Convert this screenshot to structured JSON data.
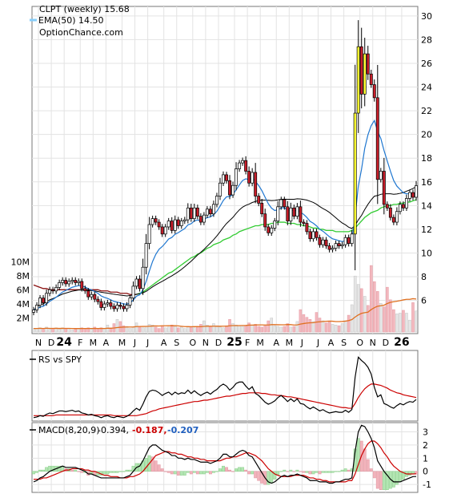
{
  "chart_data": {
    "type": "candlestick",
    "legend": {
      "title_line": "CLPT (weekly) 15.68",
      "ema_line": "EMA(50) 14.50",
      "source": "OptionChance.com"
    },
    "x_axis": {
      "labels": [
        {
          "text": "N",
          "week": 2
        },
        {
          "text": "D",
          "week": 6
        },
        {
          "text": "24",
          "week": 10,
          "bold": true
        },
        {
          "text": "F",
          "week": 15
        },
        {
          "text": "M",
          "week": 19
        },
        {
          "text": "A",
          "week": 23
        },
        {
          "text": "M",
          "week": 28
        },
        {
          "text": "J",
          "week": 32
        },
        {
          "text": "J",
          "week": 36
        },
        {
          "text": "A",
          "week": 41
        },
        {
          "text": "S",
          "week": 45
        },
        {
          "text": "O",
          "week": 50
        },
        {
          "text": "N",
          "week": 54
        },
        {
          "text": "D",
          "week": 58
        },
        {
          "text": "25",
          "week": 63,
          "bold": true
        },
        {
          "text": "F",
          "week": 67
        },
        {
          "text": "M",
          "week": 71
        },
        {
          "text": "A",
          "week": 76
        },
        {
          "text": "M",
          "week": 80
        },
        {
          "text": "J",
          "week": 84
        },
        {
          "text": "J",
          "week": 89
        },
        {
          "text": "A",
          "week": 93
        },
        {
          "text": "S",
          "week": 97
        },
        {
          "text": "O",
          "week": 102
        },
        {
          "text": "N",
          "week": 106
        },
        {
          "text": "D",
          "week": 110
        },
        {
          "text": "26",
          "week": 115,
          "bold": true
        }
      ]
    },
    "price_axis": {
      "ticks": [
        6,
        8,
        10,
        12,
        14,
        16,
        18,
        20,
        22,
        24,
        26,
        28,
        30
      ],
      "range": [
        3.2,
        30.8
      ]
    },
    "volume_axis": {
      "ticks": [
        {
          "v": 2,
          "label": "2M"
        },
        {
          "v": 4,
          "label": "4M"
        },
        {
          "v": 6,
          "label": "6M"
        },
        {
          "v": 8,
          "label": "8M"
        },
        {
          "v": 10,
          "label": "10M"
        }
      ],
      "range": [
        0,
        11
      ]
    },
    "close": [
      5.2,
      5.6,
      6.2,
      5.8,
      6.6,
      6.9,
      6.8,
      7.1,
      7.5,
      7.7,
      7.4,
      7.6,
      7.7,
      7.5,
      7.6,
      7.0,
      6.8,
      6.3,
      6.5,
      6.1,
      5.9,
      5.4,
      5.7,
      5.8,
      5.5,
      5.3,
      5.6,
      5.5,
      5.3,
      5.6,
      6.2,
      7.2,
      7.8,
      7.0,
      8.8,
      10.8,
      12.4,
      12.9,
      12.6,
      12.2,
      11.6,
      12.2,
      12.7,
      11.9,
      12.8,
      12.3,
      12.7,
      12.8,
      13.8,
      12.9,
      13.8,
      13.1,
      12.6,
      13.2,
      13.7,
      13.3,
      14.1,
      14.8,
      15.9,
      16.6,
      16.1,
      14.9,
      15.7,
      17.1,
      17.6,
      17.8,
      16.9,
      15.9,
      16.8,
      14.8,
      14.2,
      13.3,
      12.2,
      11.7,
      12.1,
      12.7,
      13.9,
      14.5,
      13.9,
      12.7,
      13.8,
      13.1,
      13.9,
      12.6,
      12.5,
      11.8,
      11.2,
      11.8,
      11.3,
      10.7,
      11.1,
      10.6,
      10.3,
      10.4,
      10.8,
      10.6,
      10.7,
      11.3,
      10.8,
      11.6,
      21.8,
      27.4,
      23.4,
      26.8,
      25.1,
      24.2,
      23.1,
      16.2,
      16.9,
      14.1,
      13.8,
      13.0,
      12.6,
      13.5,
      14.1,
      13.8,
      14.6,
      15.1,
      14.7,
      15.68
    ],
    "volume": [
      0.5,
      0.5,
      0.6,
      0.4,
      0.7,
      0.4,
      0.5,
      0.6,
      0.4,
      0.6,
      0.5,
      0.5,
      0.3,
      0.4,
      0.5,
      0.6,
      0.5,
      0.6,
      0.4,
      0.7,
      0.4,
      0.6,
      0.5,
      1.0,
      0.6,
      1.2,
      1.8,
      1.5,
      0.9,
      0.8,
      0.5,
      0.7,
      1.3,
      0.7,
      0.6,
      0.8,
      1.1,
      1.0,
      0.7,
      0.5,
      0.9,
      0.6,
      0.7,
      1.0,
      0.8,
      0.6,
      0.7,
      0.5,
      0.8,
      0.7,
      0.6,
      0.8,
      1.1,
      1.6,
      1.0,
      0.8,
      1.2,
      0.9,
      0.7,
      0.6,
      0.9,
      1.8,
      1.2,
      1.0,
      0.9,
      0.8,
      0.9,
      1.3,
      1.0,
      1.1,
      0.8,
      0.7,
      0.9,
      1.6,
      2.0,
      0.9,
      0.8,
      0.7,
      0.8,
      1.2,
      0.7,
      0.8,
      1.5,
      3.2,
      2.5,
      2.1,
      1.8,
      1.5,
      2.8,
      2.0,
      1.6,
      1.3,
      1.5,
      1.1,
      1.0,
      0.9,
      1.2,
      1.6,
      2.4,
      3.9,
      8.0,
      6.8,
      6.2,
      5.1,
      3.8,
      9.5,
      7.2,
      5.8,
      4.1,
      3.6,
      6.4,
      4.6,
      3.2,
      2.6,
      2.7,
      3.1,
      2.7,
      1.7,
      4.2,
      3.0
    ],
    "ema50": [
      7.3,
      7.2,
      7.1,
      7.0,
      7.0,
      6.9,
      6.9,
      6.9,
      6.9,
      6.9,
      6.9,
      6.9,
      6.9,
      6.9,
      6.9,
      6.9,
      6.9,
      6.9,
      6.9,
      6.9,
      6.9,
      6.8,
      6.8,
      6.8,
      6.7,
      6.7,
      6.7,
      6.6,
      6.6,
      6.6,
      6.5,
      6.5,
      6.5,
      6.6,
      6.7,
      6.9,
      7.1,
      7.3,
      7.5,
      7.7,
      7.9,
      8.1,
      8.3,
      8.4,
      8.6,
      8.8,
      9.0,
      9.2,
      9.4,
      9.6,
      9.7,
      9.9,
      10.0,
      10.2,
      10.4,
      10.5,
      10.7,
      10.8,
      10.9,
      11.1,
      11.2,
      11.3,
      11.5,
      11.6,
      11.8,
      11.9,
      12.0,
      12.1,
      12.2,
      12.3,
      12.3,
      12.4,
      12.4,
      12.4,
      12.5,
      12.5,
      12.6,
      12.6,
      12.6,
      12.5,
      12.5,
      12.5,
      12.4,
      12.4,
      12.3,
      12.3,
      12.2,
      12.1,
      12.1,
      12.0,
      12.0,
      11.9,
      11.9,
      11.9,
      11.8,
      11.8,
      11.8,
      11.8,
      11.8,
      11.9,
      12.1,
      12.4,
      12.7,
      13.0,
      13.2,
      13.4,
      13.5,
      13.6,
      13.8,
      13.9,
      14.0,
      14.0,
      14.1,
      14.1,
      14.2,
      14.2,
      14.3,
      14.3,
      14.4,
      14.5
    ],
    "rs_vs_spy": {
      "label": "RS vs SPY",
      "rs": [
        0.5,
        0.6,
        0.8,
        0.7,
        1.0,
        1.2,
        1.1,
        1.3,
        1.5,
        1.5,
        1.4,
        1.5,
        1.6,
        1.4,
        1.5,
        1.2,
        1.1,
        0.9,
        1.0,
        0.8,
        0.7,
        0.5,
        0.7,
        0.8,
        0.6,
        0.5,
        0.7,
        0.6,
        0.5,
        0.7,
        1.0,
        1.5,
        1.9,
        1.6,
        2.5,
        3.6,
        4.4,
        4.6,
        4.5,
        4.2,
        3.8,
        4.1,
        4.3,
        3.9,
        4.3,
        4.0,
        4.2,
        4.1,
        4.6,
        4.1,
        4.5,
        4.1,
        3.8,
        4.1,
        4.3,
        4.0,
        4.4,
        4.7,
        5.2,
        5.5,
        5.2,
        4.6,
        5.0,
        5.6,
        5.8,
        5.8,
        5.2,
        4.7,
        5.1,
        4.1,
        3.8,
        3.3,
        2.8,
        2.5,
        2.7,
        3.0,
        3.5,
        3.8,
        3.4,
        2.9,
        3.3,
        2.9,
        3.3,
        2.6,
        2.5,
        2.1,
        1.8,
        2.1,
        1.8,
        1.5,
        1.7,
        1.4,
        1.2,
        1.3,
        1.4,
        1.3,
        1.3,
        1.6,
        1.3,
        1.7,
        6.5,
        9.5,
        9.0,
        8.6,
        8.0,
        7.0,
        5.0,
        3.6,
        3.9,
        2.6,
        2.4,
        2.1,
        1.9,
        2.3,
        2.6,
        2.4,
        2.7,
        2.9,
        2.8,
        3.2
      ],
      "ma": [
        0.8,
        0.8,
        0.8,
        0.8,
        0.8,
        0.8,
        0.8,
        0.9,
        0.9,
        0.9,
        0.9,
        0.9,
        0.9,
        0.9,
        0.9,
        0.9,
        0.9,
        0.9,
        0.9,
        0.9,
        0.9,
        0.9,
        0.9,
        0.9,
        0.9,
        0.8,
        0.8,
        0.8,
        0.8,
        0.8,
        0.8,
        0.8,
        0.8,
        0.9,
        1.0,
        1.1,
        1.3,
        1.5,
        1.6,
        1.8,
        1.9,
        2.0,
        2.1,
        2.2,
        2.3,
        2.4,
        2.5,
        2.6,
        2.7,
        2.8,
        2.9,
        2.9,
        3.0,
        3.1,
        3.1,
        3.2,
        3.3,
        3.4,
        3.5,
        3.6,
        3.7,
        3.7,
        3.8,
        3.9,
        4.0,
        4.1,
        4.1,
        4.2,
        4.2,
        4.2,
        4.2,
        4.1,
        4.1,
        4.0,
        3.9,
        3.9,
        3.8,
        3.8,
        3.7,
        3.6,
        3.6,
        3.5,
        3.4,
        3.3,
        3.2,
        3.1,
        3.0,
        2.9,
        2.8,
        2.7,
        2.6,
        2.5,
        2.4,
        2.3,
        2.2,
        2.1,
        2.0,
        2.0,
        1.9,
        1.9,
        2.6,
        3.5,
        4.2,
        4.8,
        5.2,
        5.5,
        5.5,
        5.4,
        5.3,
        5.1,
        4.9,
        4.6,
        4.4,
        4.2,
        4.1,
        3.9,
        3.8,
        3.7,
        3.6,
        3.5
      ],
      "range": [
        0,
        10.5
      ]
    },
    "macd": {
      "label": "MACD(8,20,9)",
      "macd_value": "-0.394,",
      "signal_value": "-0.187,",
      "hist_value": "-0.207",
      "ticks": [
        -1,
        0,
        1,
        2,
        3
      ],
      "range": [
        -1.6,
        3.7
      ],
      "macd_line": [
        -0.8,
        -0.7,
        -0.5,
        -0.4,
        -0.2,
        0.0,
        0.1,
        0.2,
        0.3,
        0.4,
        0.3,
        0.3,
        0.3,
        0.3,
        0.2,
        0.1,
        0.0,
        -0.2,
        -0.2,
        -0.3,
        -0.4,
        -0.5,
        -0.5,
        -0.5,
        -0.5,
        -0.5,
        -0.5,
        -0.5,
        -0.5,
        -0.4,
        -0.3,
        0.0,
        0.3,
        0.4,
        0.8,
        1.3,
        1.8,
        2.0,
        2.0,
        1.8,
        1.6,
        1.5,
        1.4,
        1.2,
        1.2,
        1.0,
        1.0,
        0.9,
        1.0,
        0.9,
        0.9,
        0.8,
        0.7,
        0.7,
        0.7,
        0.6,
        0.7,
        0.8,
        1.0,
        1.3,
        1.3,
        1.1,
        1.1,
        1.3,
        1.5,
        1.6,
        1.5,
        1.2,
        1.1,
        0.7,
        0.3,
        -0.1,
        -0.5,
        -0.8,
        -0.9,
        -0.8,
        -0.6,
        -0.4,
        -0.3,
        -0.4,
        -0.3,
        -0.3,
        -0.2,
        -0.3,
        -0.4,
        -0.5,
        -0.7,
        -0.7,
        -0.7,
        -0.8,
        -0.8,
        -0.8,
        -0.9,
        -0.9,
        -0.8,
        -0.8,
        -0.7,
        -0.6,
        -0.6,
        -0.5,
        1.5,
        3.0,
        3.5,
        3.4,
        3.0,
        2.5,
        1.8,
        0.8,
        0.4,
        0.0,
        -0.3,
        -0.6,
        -0.8,
        -0.8,
        -0.8,
        -0.7,
        -0.6,
        -0.5,
        -0.4,
        -0.394
      ],
      "signal_line": [
        -0.6,
        -0.6,
        -0.6,
        -0.5,
        -0.5,
        -0.4,
        -0.3,
        -0.2,
        -0.1,
        0.0,
        0.1,
        0.1,
        0.2,
        0.2,
        0.2,
        0.2,
        0.1,
        0.1,
        0.0,
        0.0,
        -0.1,
        -0.2,
        -0.3,
        -0.3,
        -0.4,
        -0.4,
        -0.4,
        -0.5,
        -0.5,
        -0.5,
        -0.4,
        -0.4,
        -0.3,
        -0.2,
        0.0,
        0.3,
        0.6,
        0.9,
        1.2,
        1.3,
        1.4,
        1.5,
        1.5,
        1.4,
        1.4,
        1.3,
        1.3,
        1.2,
        1.1,
        1.1,
        1.0,
        1.0,
        0.9,
        0.9,
        0.8,
        0.8,
        0.8,
        0.8,
        0.8,
        0.9,
        1.0,
        1.0,
        1.1,
        1.1,
        1.2,
        1.3,
        1.4,
        1.4,
        1.3,
        1.2,
        1.0,
        0.8,
        0.5,
        0.2,
        0.0,
        -0.2,
        -0.3,
        -0.4,
        -0.4,
        -0.4,
        -0.4,
        -0.3,
        -0.3,
        -0.3,
        -0.3,
        -0.4,
        -0.5,
        -0.5,
        -0.6,
        -0.6,
        -0.7,
        -0.7,
        -0.8,
        -0.8,
        -0.8,
        -0.8,
        -0.8,
        -0.8,
        -0.7,
        -0.7,
        -0.2,
        0.5,
        1.2,
        1.7,
        2.1,
        2.3,
        2.3,
        2.1,
        1.8,
        1.4,
        1.1,
        0.7,
        0.4,
        0.2,
        0.0,
        -0.1,
        -0.2,
        -0.2,
        -0.2,
        -0.187
      ],
      "hist": [
        -0.2,
        -0.1,
        0.1,
        0.1,
        0.3,
        0.4,
        0.4,
        0.4,
        0.4,
        0.4,
        0.2,
        0.2,
        0.1,
        0.1,
        0.0,
        -0.1,
        -0.1,
        -0.3,
        -0.2,
        -0.3,
        -0.3,
        -0.3,
        -0.2,
        -0.2,
        -0.1,
        -0.1,
        -0.1,
        0.0,
        0.0,
        0.1,
        0.1,
        0.4,
        0.6,
        0.6,
        0.8,
        1.0,
        1.2,
        1.1,
        0.8,
        0.5,
        0.2,
        0.0,
        -0.1,
        -0.2,
        -0.2,
        -0.3,
        -0.3,
        -0.3,
        -0.1,
        -0.2,
        -0.1,
        -0.2,
        -0.2,
        -0.2,
        -0.1,
        -0.2,
        -0.1,
        0.0,
        0.2,
        0.4,
        0.3,
        0.1,
        0.0,
        0.2,
        0.3,
        0.3,
        0.1,
        -0.2,
        -0.2,
        -0.5,
        -0.7,
        -0.9,
        -1.0,
        -1.0,
        -0.9,
        -0.6,
        -0.3,
        0.0,
        0.1,
        0.0,
        0.1,
        0.0,
        0.1,
        0.0,
        -0.1,
        -0.1,
        -0.2,
        -0.2,
        -0.1,
        -0.2,
        -0.1,
        -0.1,
        -0.1,
        -0.1,
        0.0,
        0.0,
        0.1,
        0.2,
        0.1,
        0.2,
        1.7,
        2.5,
        2.3,
        1.7,
        0.9,
        0.2,
        -0.5,
        -1.3,
        -1.4,
        -1.4,
        -1.4,
        -1.3,
        -1.2,
        -1.0,
        -0.8,
        -0.6,
        -0.4,
        -0.3,
        -0.2,
        -0.207
      ]
    }
  }
}
